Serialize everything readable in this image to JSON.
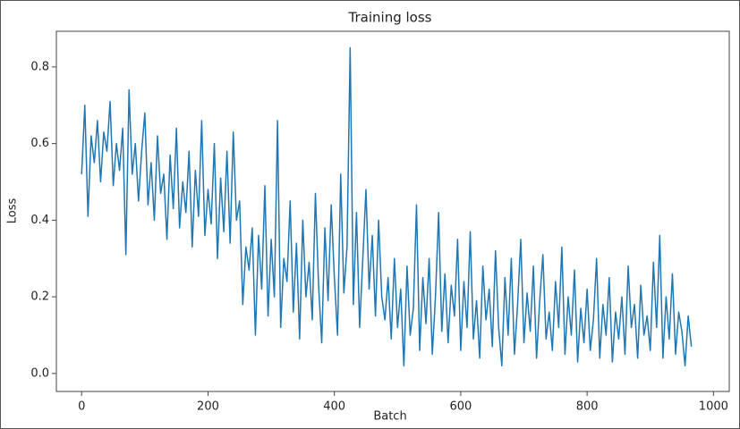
{
  "chart_data": {
    "type": "line",
    "title": "Training loss",
    "x_label": "Batch",
    "y_label": "Loss",
    "x": [
      0,
      5,
      10,
      15,
      20,
      25,
      30,
      35,
      40,
      45,
      50,
      55,
      60,
      65,
      70,
      75,
      80,
      85,
      90,
      95,
      100,
      105,
      110,
      115,
      120,
      125,
      130,
      135,
      140,
      145,
      150,
      155,
      160,
      165,
      170,
      175,
      180,
      185,
      190,
      195,
      200,
      205,
      210,
      215,
      220,
      225,
      230,
      235,
      240,
      245,
      250,
      255,
      260,
      265,
      270,
      275,
      280,
      285,
      290,
      295,
      300,
      305,
      310,
      315,
      320,
      325,
      330,
      335,
      340,
      345,
      350,
      355,
      360,
      365,
      370,
      375,
      380,
      385,
      390,
      395,
      400,
      405,
      410,
      415,
      420,
      425,
      430,
      435,
      440,
      445,
      450,
      455,
      460,
      465,
      470,
      475,
      480,
      485,
      490,
      495,
      500,
      505,
      510,
      515,
      520,
      525,
      530,
      535,
      540,
      545,
      550,
      555,
      560,
      565,
      570,
      575,
      580,
      585,
      590,
      595,
      600,
      605,
      610,
      615,
      620,
      625,
      630,
      635,
      640,
      645,
      650,
      655,
      660,
      665,
      670,
      675,
      680,
      685,
      690,
      695,
      700,
      705,
      710,
      715,
      720,
      725,
      730,
      735,
      740,
      745,
      750,
      755,
      760,
      765,
      770,
      775,
      780,
      785,
      790,
      795,
      800,
      805,
      810,
      815,
      820,
      825,
      830,
      835,
      840,
      845,
      850,
      855,
      860,
      865,
      870,
      875,
      880,
      885,
      890,
      895,
      900,
      905,
      910,
      915,
      920,
      925,
      930,
      935,
      940,
      945,
      950,
      955,
      960,
      965
    ],
    "series": [
      {
        "name": "Training loss",
        "color": "#1f77b4",
        "values": [
          0.52,
          0.7,
          0.41,
          0.62,
          0.55,
          0.66,
          0.5,
          0.63,
          0.58,
          0.71,
          0.49,
          0.6,
          0.53,
          0.64,
          0.31,
          0.74,
          0.52,
          0.6,
          0.45,
          0.58,
          0.68,
          0.44,
          0.55,
          0.4,
          0.62,
          0.47,
          0.52,
          0.35,
          0.57,
          0.43,
          0.64,
          0.38,
          0.5,
          0.42,
          0.58,
          0.33,
          0.53,
          0.41,
          0.66,
          0.36,
          0.48,
          0.39,
          0.6,
          0.3,
          0.51,
          0.37,
          0.58,
          0.34,
          0.63,
          0.4,
          0.45,
          0.18,
          0.33,
          0.27,
          0.38,
          0.1,
          0.36,
          0.22,
          0.49,
          0.15,
          0.35,
          0.2,
          0.66,
          0.12,
          0.3,
          0.24,
          0.45,
          0.16,
          0.34,
          0.09,
          0.4,
          0.2,
          0.29,
          0.14,
          0.47,
          0.23,
          0.08,
          0.38,
          0.19,
          0.44,
          0.25,
          0.1,
          0.52,
          0.21,
          0.33,
          0.85,
          0.18,
          0.42,
          0.12,
          0.3,
          0.48,
          0.22,
          0.36,
          0.15,
          0.4,
          0.2,
          0.14,
          0.25,
          0.09,
          0.3,
          0.12,
          0.22,
          0.02,
          0.28,
          0.1,
          0.17,
          0.44,
          0.06,
          0.25,
          0.13,
          0.3,
          0.05,
          0.2,
          0.42,
          0.11,
          0.26,
          0.08,
          0.23,
          0.15,
          0.35,
          0.06,
          0.24,
          0.12,
          0.37,
          0.09,
          0.19,
          0.04,
          0.28,
          0.14,
          0.22,
          0.07,
          0.32,
          0.12,
          0.02,
          0.25,
          0.1,
          0.3,
          0.05,
          0.18,
          0.35,
          0.08,
          0.21,
          0.11,
          0.28,
          0.04,
          0.19,
          0.31,
          0.09,
          0.16,
          0.06,
          0.24,
          0.12,
          0.33,
          0.05,
          0.2,
          0.1,
          0.27,
          0.03,
          0.17,
          0.08,
          0.22,
          0.06,
          0.14,
          0.3,
          0.04,
          0.18,
          0.1,
          0.25,
          0.03,
          0.16,
          0.09,
          0.2,
          0.05,
          0.28,
          0.12,
          0.18,
          0.04,
          0.23,
          0.1,
          0.15,
          0.06,
          0.29,
          0.12,
          0.36,
          0.04,
          0.2,
          0.09,
          0.26,
          0.05,
          0.16,
          0.11,
          0.02,
          0.15,
          0.07
        ]
      }
    ],
    "xlim": [
      -40,
      1025
    ],
    "ylim": [
      -0.047,
      0.893
    ],
    "xticks": [
      0,
      200,
      400,
      600,
      800,
      1000
    ],
    "yticks": [
      {
        "value": 0,
        "label": "0.0"
      },
      0.2,
      0.4,
      0.6,
      0.8
    ]
  }
}
